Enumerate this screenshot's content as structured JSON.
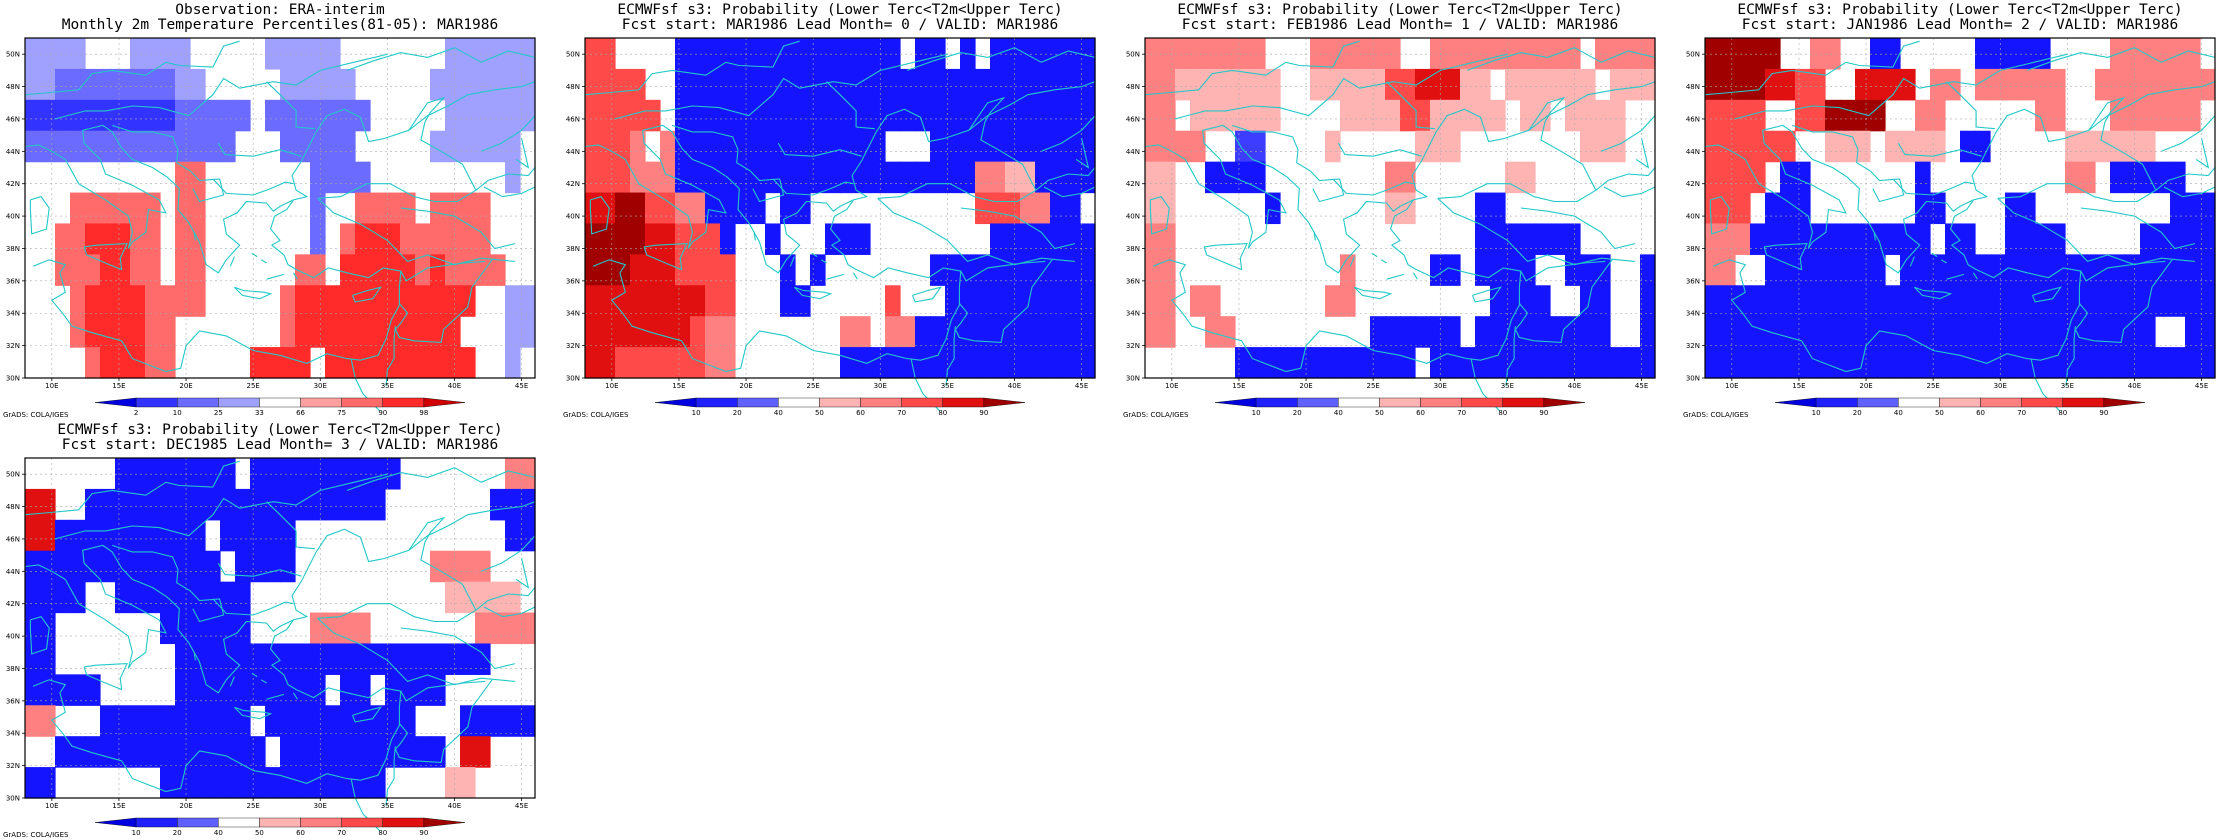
{
  "panels": [
    {
      "title_line1": "Observation: ERA-interim",
      "title_line2": "Monthly 2m Temperature Percentiles(81-05): MAR1986",
      "colorbar_labels": [
        "2",
        "10",
        "25",
        "33",
        "66",
        "75",
        "90",
        "98"
      ],
      "grads_credit": "GrADS: COLA/IGES",
      "grid": [
        ".c...BBBBcc..cc...dd.BBBBcc....ee",
        "..cc.BBBBcc..cc...dd.BBBBcc...cee",
        "ccccBBBBBccc..cc..ccBBBBBB....cee",
        "...................................",
        "......ff.............fcc.........",
        "...hhhhhhhh.......e..hhhhhhhh....",
        "....hhhhhhh........iiiihhhh.....",
        "....iiiihhh.......iiiiiiihh....e",
        "....iiiihhh.......iiiiiiiihh..ee",
        ".....hhhhhh.........iiiiiiiii.",
        ".......iiii...iii...iiiiiiiii.."
      ]
    },
    {
      "title_line1": "ECMWFsf s3: Probability (Lower Terc<T2m<Upper Terc)",
      "title_line2": "Fcst start: MAR1986   Lead Month= 0 / VALID: MAR1986",
      "colorbar_labels": [
        "10",
        "20",
        "40",
        "50",
        "60",
        "70",
        "80",
        "90"
      ],
      "grads_credit": "GrADS: COLA/IGES"
    },
    {
      "title_line1": "ECMWFsf s3: Probability (Lower Terc<T2m<Upper Terc)",
      "title_line2": "Fcst start: FEB1986   Lead Month= 1 / VALID: MAR1986",
      "colorbar_labels": [
        "10",
        "20",
        "40",
        "50",
        "60",
        "70",
        "80",
        "90"
      ],
      "grads_credit": "GrADS: COLA/IGES"
    },
    {
      "title_line1": "ECMWFsf s3: Probability (Lower Terc<T2m<Upper Terc)",
      "title_line2": "Fcst start: JAN1986   Lead Month= 2 / VALID: MAR1986",
      "colorbar_labels": [
        "10",
        "20",
        "40",
        "50",
        "60",
        "70",
        "80",
        "90"
      ],
      "grads_credit": "GrADS: COLA/IGES"
    },
    {
      "title_line1": "ECMWFsf s3: Probability (Lower Terc<T2m<Upper Terc)",
      "title_line2": "Fcst start: DEC1985   Lead Month= 3 / VALID: MAR1986",
      "colorbar_labels": [
        "10",
        "20",
        "40",
        "50",
        "60",
        "70",
        "80",
        "90"
      ],
      "grads_credit": "GrADS: COLA/IGES"
    }
  ],
  "axes": {
    "x_ticks": [
      "10E",
      "15E",
      "20E",
      "25E",
      "30E",
      "35E",
      "40E",
      "45E"
    ],
    "y_ticks": [
      "30N",
      "32N",
      "34N",
      "36N",
      "38N",
      "40N",
      "42N",
      "44N",
      "46N",
      "48N",
      "50N"
    ]
  },
  "palettes": {
    "observation": [
      "#3333ff",
      "#6b6bff",
      "#a0a0ff",
      "#ffffff",
      "#ff9f9f",
      "#ff6a6a",
      "#ff2a2a",
      "#d00000"
    ],
    "forecast": [
      "#1414ff",
      "#3d3dff",
      "#ffffff",
      "#ffb4b4",
      "#ff8080",
      "#ff4a4a",
      "#e01010",
      "#a00000"
    ]
  },
  "chart_data": [
    {
      "type": "heatmap",
      "title": "Observation: ERA-interim / Monthly 2m Temperature Percentiles(81-05): MAR1986",
      "x_range": [
        8,
        46
      ],
      "y_range": [
        30,
        51
      ],
      "legend_levels": [
        "2",
        "10",
        "25",
        "33",
        "66",
        "75",
        "90",
        "98"
      ],
      "cells": [
        [
          "50N-48N",
          "11E-13E",
          "<10"
        ],
        [
          "50N-48N",
          "17E-23E",
          "10-25"
        ],
        [
          "50N-48N",
          "31E-33E",
          "25-33"
        ],
        [
          "48N-44N",
          "17E-23E",
          "2-10"
        ],
        [
          "46N-44N",
          "8E-23E",
          "10-25"
        ],
        [
          "48N-42N",
          "41E-46E",
          "25-33"
        ],
        [
          "48N-42N",
          "43E-46E",
          "2-10"
        ],
        [
          "41N-33N",
          "15E-23E",
          "75-90"
        ],
        [
          "41N-30N",
          "30E-42E",
          "75-90"
        ],
        [
          "40N-37N",
          "27E-29E",
          "25-33"
        ],
        [
          "34N-30N",
          "42E-44E",
          "25-33"
        ]
      ]
    },
    {
      "type": "heatmap",
      "title": "ECMWFsf s3: Probability (Lower Terc<T2m<Upper Terc) / Fcst start: MAR1986 Lead Month= 0 / VALID: MAR1986",
      "x_range": [
        8,
        46
      ],
      "y_range": [
        30,
        51
      ],
      "legend_levels": [
        "10",
        "20",
        "40",
        "50",
        "60",
        "70",
        "80",
        "90"
      ],
      "summary": {
        "west_italy": "60-90 (warm)",
        "north_east_block": "<20 (blue)",
        "turkey_levant": "10-20 (blue)"
      }
    },
    {
      "type": "heatmap",
      "title": "ECMWFsf s3: Probability (Lower Terc<T2m<Upper Terc) / Fcst start: FEB1986 Lead Month= 1 / VALID: MAR1986",
      "x_range": [
        8,
        46
      ],
      "y_range": [
        30,
        51
      ],
      "legend_levels": [
        "10",
        "20",
        "40",
        "50",
        "60",
        "70",
        "80",
        "90"
      ],
      "summary": {
        "north_band": "50-60 (light red)",
        "west": "50-60",
        "east_turkey": "10-20 (blue)"
      }
    },
    {
      "type": "heatmap",
      "title": "ECMWFsf s3: Probability (Lower Terc<T2m<Upper Terc) / Fcst start: JAN1986 Lead Month= 2 / VALID: MAR1986",
      "x_range": [
        8,
        46
      ],
      "y_range": [
        30,
        51
      ],
      "legend_levels": [
        "10",
        "20",
        "40",
        "50",
        "60",
        "70",
        "80",
        "90"
      ],
      "summary": {
        "north_west": "70-90 (red)",
        "south_band": "<20 (blue)"
      }
    },
    {
      "type": "heatmap",
      "title": "ECMWFsf s3: Probability (Lower Terc<T2m<Upper Terc) / Fcst start: DEC1985 Lead Month= 3 / VALID: MAR1986",
      "x_range": [
        8,
        46
      ],
      "y_range": [
        30,
        51
      ],
      "legend_levels": [
        "10",
        "20",
        "40",
        "50",
        "60",
        "70",
        "80",
        "90"
      ],
      "summary": {
        "central_europe": "<20 (blue)",
        "east_block": "50-70 (red)"
      }
    }
  ]
}
